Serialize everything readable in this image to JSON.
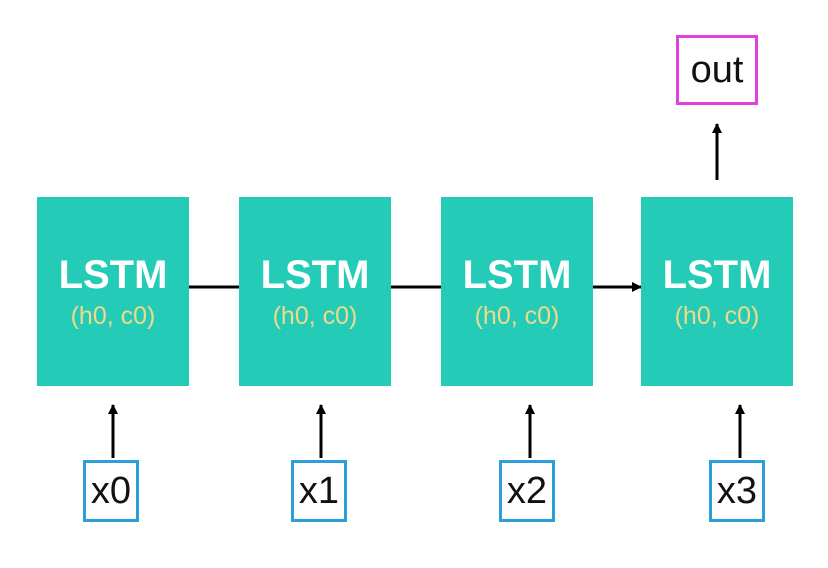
{
  "diagram": {
    "cells": [
      {
        "title": "LSTM",
        "state": "(h0, c0)"
      },
      {
        "title": "LSTM",
        "state": "(h0, c0)"
      },
      {
        "title": "LSTM",
        "state": "(h0, c0)"
      },
      {
        "title": "LSTM",
        "state": "(h0, c0)"
      }
    ],
    "inputs": [
      "x0",
      "x1",
      "x2",
      "x3"
    ],
    "output": "out",
    "colors": {
      "cell_fill": "#24ccb8",
      "cell_text": "#ffffff",
      "state_text": "#f1d98a",
      "input_border": "#2a9fd8",
      "output_border": "#e040e0",
      "connector": "#000000"
    }
  }
}
